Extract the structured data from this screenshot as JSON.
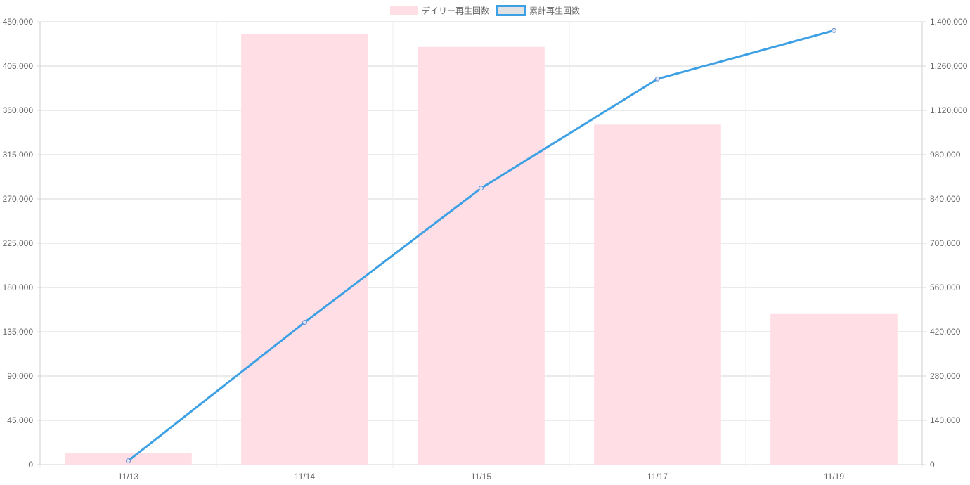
{
  "chart_data": {
    "type": "bar",
    "categories": [
      "11/13",
      "11/14",
      "11/15",
      "11/17",
      "11/19"
    ],
    "series": [
      {
        "name": "デイリー再生回数",
        "type": "bar",
        "axis": "left",
        "values": [
          11500,
          437500,
          424500,
          345500,
          153000
        ]
      },
      {
        "name": "累計再生回数",
        "type": "line",
        "axis": "right",
        "values": [
          12000,
          450000,
          874000,
          1219500,
          1372500
        ]
      }
    ],
    "y_left": {
      "ylim": [
        0,
        450000
      ],
      "ticks": [
        "0",
        "45,000",
        "90,000",
        "135,000",
        "180,000",
        "225,000",
        "270,000",
        "315,000",
        "360,000",
        "405,000",
        "450,000"
      ]
    },
    "y_right": {
      "ylim": [
        0,
        1400000
      ],
      "ticks": [
        "0",
        "140,000",
        "280,000",
        "420,000",
        "560,000",
        "700,000",
        "840,000",
        "980,000",
        "1,120,000",
        "1,260,000",
        "1,400,000"
      ]
    },
    "legend": {
      "placement": "top-center"
    },
    "grid": true,
    "colors": {
      "bar_fill": "#ffdfe5",
      "line": "#3ea0e4",
      "line_point": "#6a8fd3",
      "legend_line_fill": "#e2e2e2",
      "grid": "#d7d7d7",
      "axis": "#cfcfcf",
      "text": "#666666"
    }
  }
}
